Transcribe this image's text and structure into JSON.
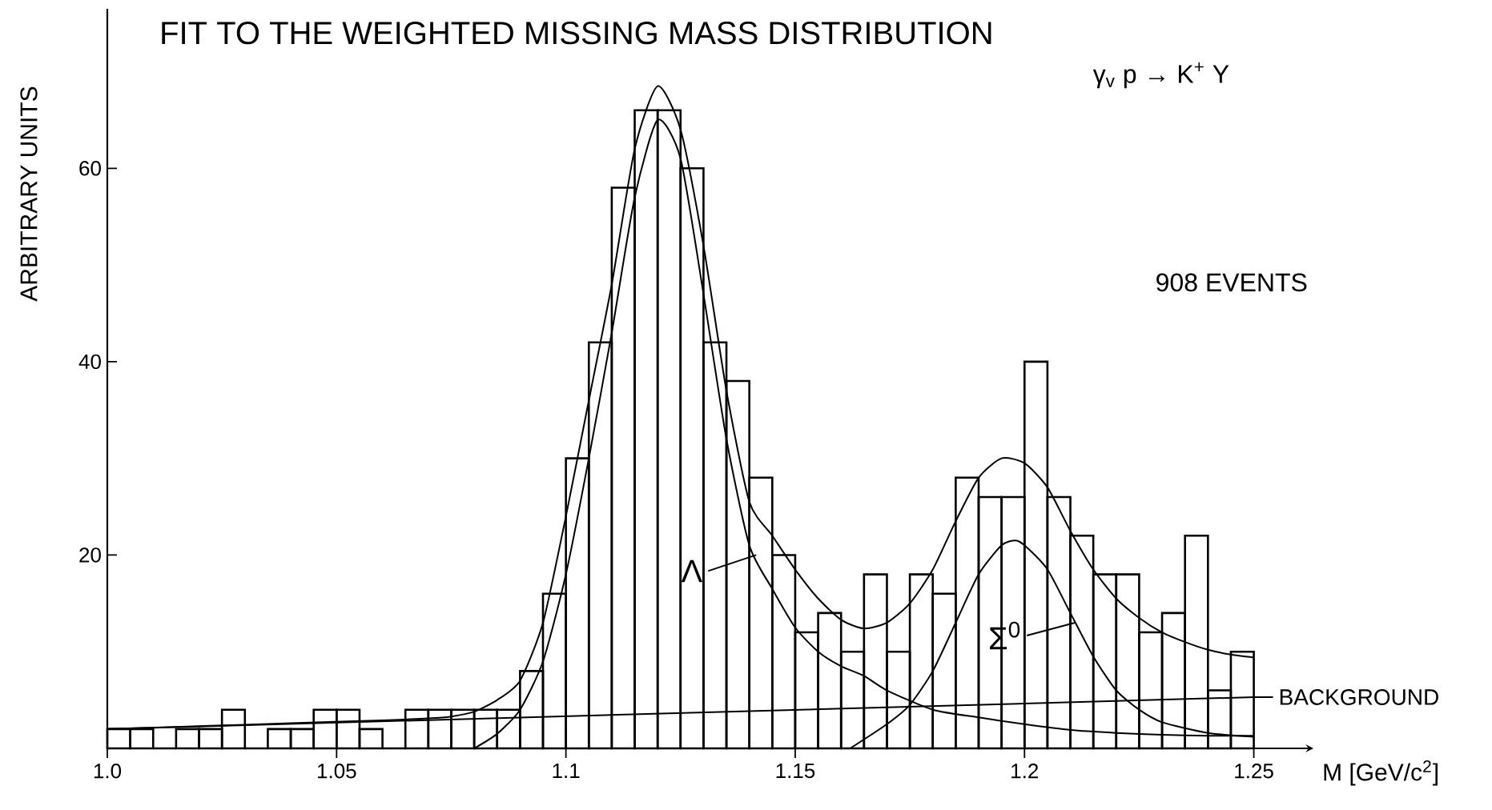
{
  "chart_data": {
    "type": "histogram",
    "title": "FIT TO THE WEIGHTED MISSING MASS DISTRIBUTION",
    "xlabel": "M [GeV/c$^{2}$]",
    "ylabel": "ARBITRARY UNITS",
    "bins": [
      1.0,
      1.005,
      1.01,
      1.015,
      1.02,
      1.025,
      1.03,
      1.035,
      1.04,
      1.045,
      1.05,
      1.055,
      1.06,
      1.065,
      1.07,
      1.075,
      1.08,
      1.085,
      1.09,
      1.095,
      1.1,
      1.105,
      1.11,
      1.115,
      1.12,
      1.125,
      1.13,
      1.135,
      1.14,
      1.145,
      1.15,
      1.155,
      1.16,
      1.165,
      1.17,
      1.175,
      1.18,
      1.185,
      1.19,
      1.195,
      1.2,
      1.205,
      1.21,
      1.215,
      1.22,
      1.225,
      1.23,
      1.235,
      1.24,
      1.245,
      1.25
    ],
    "values": [
      2,
      2,
      0,
      2,
      2,
      4,
      0,
      2,
      2,
      4,
      4,
      2,
      0,
      4,
      4,
      4,
      4,
      4,
      8,
      16,
      30,
      42,
      58,
      66,
      66,
      60,
      42,
      38,
      28,
      20,
      12,
      14,
      10,
      18,
      10,
      18,
      16,
      28,
      26,
      26,
      40,
      26,
      22,
      18,
      18,
      12,
      14,
      22,
      6,
      10
    ],
    "color": "#000000",
    "series": [
      {
        "type": "line",
        "color": "#000000",
        "x": [
          1.0,
          1.02,
          1.04,
          1.06,
          1.07,
          1.075,
          1.08,
          1.085,
          1.09,
          1.095,
          1.1,
          1.105,
          1.11,
          1.115,
          1.12,
          1.125,
          1.13,
          1.135,
          1.14,
          1.145,
          1.15,
          1.155,
          1.16,
          1.165,
          1.17,
          1.175,
          1.18,
          1.185,
          1.19,
          1.195,
          1.2,
          1.205,
          1.21,
          1.215,
          1.22,
          1.225,
          1.23,
          1.235,
          1.24,
          1.245,
          1.25
        ],
        "values": [
          2,
          2.3,
          2.6,
          2.9,
          3.1,
          3.3,
          3.8,
          5,
          7,
          13,
          24,
          36,
          48,
          62,
          68.5,
          64,
          52,
          37,
          25.5,
          22,
          18.5,
          15.5,
          13.3,
          12.4,
          13,
          15,
          18.5,
          23.5,
          28,
          30,
          29.5,
          27,
          22.5,
          18.5,
          15.5,
          13.5,
          12,
          11,
          10.2,
          9.7,
          9.4
        ]
      },
      {
        "type": "line",
        "color": "#000000",
        "x": [
          1.08,
          1.085,
          1.09,
          1.095,
          1.1,
          1.105,
          1.11,
          1.115,
          1.12,
          1.125,
          1.13,
          1.135,
          1.14,
          1.145,
          1.15,
          1.155,
          1.16,
          1.165,
          1.17,
          1.18,
          1.19,
          1.2,
          1.21,
          1.22,
          1.23,
          1.24,
          1.25
        ],
        "values": [
          0,
          1.5,
          4,
          9,
          18,
          30,
          43,
          57,
          65,
          61,
          47,
          32,
          21,
          16.5,
          12.5,
          10,
          8.5,
          7.5,
          6,
          4,
          3.2,
          2.5,
          1.9,
          1.6,
          1.4,
          1.3,
          1.3
        ]
      },
      {
        "type": "line",
        "color": "#000000",
        "x": [
          1.162,
          1.17,
          1.175,
          1.18,
          1.185,
          1.19,
          1.195,
          1.198,
          1.2,
          1.205,
          1.21,
          1.215,
          1.22,
          1.225,
          1.23,
          1.24,
          1.25
        ],
        "values": [
          0,
          2.5,
          4.5,
          8,
          13,
          18,
          21,
          21.5,
          21,
          18.5,
          14,
          9.5,
          6,
          4,
          2.7,
          1.6,
          1.2
        ]
      },
      {
        "type": "line",
        "color": "#000000",
        "x": [
          1.0,
          1.25
        ],
        "values": [
          2,
          5.3
        ]
      }
    ],
    "xlim": [
      1.0,
      1.263
    ],
    "ylim": [
      0,
      76.5
    ],
    "xticks": [
      {
        "value": 1.0,
        "label": "1.0"
      },
      1.05,
      1.1,
      1.15,
      1.2,
      1.25
    ],
    "yticks": [
      20,
      40,
      60
    ],
    "annotations": [
      "γ$_{v}$ p → K$^{+}$ Y",
      "908 EVENTS",
      {
        "text": "Λ",
        "x": 1.1415,
        "y": 20
      },
      {
        "text": "Σ$^{0}$",
        "x": 1.211,
        "y": 13
      },
      {
        "text": "BACKGROUND",
        "x": 1.25,
        "y": 5.3
      }
    ]
  }
}
